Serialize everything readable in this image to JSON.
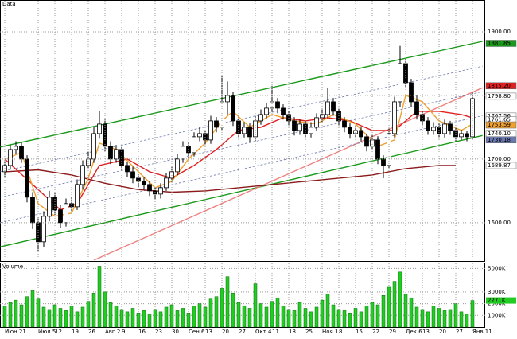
{
  "chart_data": {
    "type": "candlestick",
    "title": "Data",
    "volume_title": "Volume",
    "categories": [
      "Июн 21",
      null,
      null,
      null,
      null,
      null,
      "Июл 5",
      null,
      null,
      "12",
      null,
      null,
      "19",
      null,
      null,
      "26",
      null,
      null,
      "Авг 2",
      null,
      null,
      "9",
      null,
      null,
      "16",
      null,
      null,
      "23",
      null,
      null,
      "30",
      null,
      null,
      "Сен 6",
      null,
      null,
      "13",
      null,
      null,
      "20",
      null,
      null,
      "27",
      null,
      null,
      "Окт 4",
      null,
      null,
      "11",
      null,
      null,
      "18",
      null,
      null,
      "25",
      null,
      null,
      "Ноя 1",
      null,
      null,
      "8",
      null,
      null,
      "15",
      null,
      null,
      "22",
      null,
      null,
      "29",
      null,
      null,
      "Дек 6",
      null,
      null,
      "13",
      null,
      null,
      "20",
      null,
      null,
      "27",
      null,
      null,
      "Янв 11"
    ],
    "ohlc": [
      [
        1680,
        1698,
        1672,
        1690
      ],
      [
        1690,
        1722,
        1684,
        1715
      ],
      [
        1715,
        1728,
        1708,
        1720
      ],
      [
        1720,
        1726,
        1694,
        1700
      ],
      [
        1700,
        1706,
        1632,
        1640
      ],
      [
        1640,
        1648,
        1590,
        1600
      ],
      [
        1600,
        1608,
        1555,
        1570
      ],
      [
        1570,
        1618,
        1562,
        1610
      ],
      [
        1610,
        1650,
        1602,
        1640
      ],
      [
        1640,
        1646,
        1612,
        1620
      ],
      [
        1620,
        1628,
        1592,
        1600
      ],
      [
        1600,
        1638,
        1594,
        1630
      ],
      [
        1630,
        1640,
        1617,
        1625
      ],
      [
        1625,
        1668,
        1620,
        1660
      ],
      [
        1660,
        1698,
        1652,
        1690
      ],
      [
        1690,
        1712,
        1684,
        1700
      ],
      [
        1700,
        1750,
        1694,
        1740
      ],
      [
        1740,
        1775,
        1732,
        1755
      ],
      [
        1755,
        1762,
        1712,
        1720
      ],
      [
        1720,
        1728,
        1692,
        1700
      ],
      [
        1700,
        1722,
        1694,
        1715
      ],
      [
        1715,
        1720,
        1682,
        1690
      ],
      [
        1690,
        1696,
        1672,
        1680
      ],
      [
        1680,
        1688,
        1662,
        1670
      ],
      [
        1670,
        1676,
        1656,
        1665
      ],
      [
        1665,
        1672,
        1652,
        1660
      ],
      [
        1660,
        1666,
        1642,
        1650
      ],
      [
        1650,
        1656,
        1636,
        1645
      ],
      [
        1645,
        1662,
        1638,
        1655
      ],
      [
        1655,
        1678,
        1650,
        1670
      ],
      [
        1670,
        1688,
        1664,
        1680
      ],
      [
        1680,
        1708,
        1674,
        1700
      ],
      [
        1700,
        1728,
        1694,
        1720
      ],
      [
        1720,
        1726,
        1702,
        1710
      ],
      [
        1710,
        1742,
        1704,
        1735
      ],
      [
        1735,
        1750,
        1728,
        1740
      ],
      [
        1740,
        1746,
        1722,
        1730
      ],
      [
        1730,
        1768,
        1724,
        1760
      ],
      [
        1760,
        1766,
        1742,
        1750
      ],
      [
        1750,
        1830,
        1744,
        1790
      ],
      [
        1790,
        1822,
        1770,
        1800
      ],
      [
        1800,
        1806,
        1752,
        1760
      ],
      [
        1760,
        1766,
        1732,
        1740
      ],
      [
        1740,
        1758,
        1734,
        1750
      ],
      [
        1750,
        1756,
        1726,
        1735
      ],
      [
        1735,
        1768,
        1728,
        1760
      ],
      [
        1760,
        1778,
        1754,
        1770
      ],
      [
        1770,
        1788,
        1764,
        1780
      ],
      [
        1780,
        1815,
        1774,
        1790
      ],
      [
        1790,
        1796,
        1772,
        1780
      ],
      [
        1780,
        1786,
        1762,
        1770
      ],
      [
        1770,
        1776,
        1752,
        1760
      ],
      [
        1760,
        1766,
        1737,
        1745
      ],
      [
        1745,
        1762,
        1738,
        1755
      ],
      [
        1755,
        1760,
        1732,
        1740
      ],
      [
        1740,
        1758,
        1734,
        1750
      ],
      [
        1750,
        1772,
        1744,
        1765
      ],
      [
        1765,
        1778,
        1758,
        1770
      ],
      [
        1770,
        1812,
        1764,
        1790
      ],
      [
        1790,
        1796,
        1768,
        1775
      ],
      [
        1775,
        1780,
        1752,
        1760
      ],
      [
        1760,
        1766,
        1742,
        1750
      ],
      [
        1750,
        1756,
        1732,
        1740
      ],
      [
        1740,
        1752,
        1734,
        1745
      ],
      [
        1745,
        1750,
        1728,
        1735
      ],
      [
        1735,
        1740,
        1712,
        1720
      ],
      [
        1720,
        1738,
        1714,
        1730
      ],
      [
        1730,
        1736,
        1692,
        1700
      ],
      [
        1700,
        1706,
        1670,
        1690
      ],
      [
        1690,
        1748,
        1684,
        1740
      ],
      [
        1740,
        1798,
        1734,
        1790
      ],
      [
        1790,
        1878,
        1782,
        1850
      ],
      [
        1850,
        1858,
        1812,
        1820
      ],
      [
        1820,
        1826,
        1782,
        1790
      ],
      [
        1790,
        1800,
        1762,
        1770
      ],
      [
        1770,
        1776,
        1752,
        1760
      ],
      [
        1760,
        1766,
        1738,
        1745
      ],
      [
        1745,
        1758,
        1738,
        1750
      ],
      [
        1750,
        1756,
        1732,
        1740
      ],
      [
        1740,
        1762,
        1734,
        1755
      ],
      [
        1755,
        1760,
        1738,
        1745
      ],
      [
        1745,
        1750,
        1728,
        1735
      ],
      [
        1735,
        1746,
        1730,
        1740
      ],
      [
        1740,
        1744,
        1728,
        1735
      ],
      [
        1735,
        1805,
        1730,
        1795
      ]
    ],
    "volume": [
      1800,
      2100,
      2300,
      1900,
      2600,
      3100,
      2400,
      1700,
      1500,
      1900,
      1600,
      1400,
      1800,
      1300,
      1700,
      2200,
      2900,
      5200,
      3000,
      2100,
      1800,
      1500,
      1300,
      1600,
      1200,
      1400,
      1100,
      1500,
      1300,
      1700,
      1900,
      1400,
      1600,
      1200,
      1800,
      2000,
      1700,
      2400,
      2600,
      3300,
      4300,
      2900,
      2100,
      1800,
      1600,
      3700,
      2000,
      1700,
      2200,
      2500,
      1800,
      1500,
      1400,
      2100,
      1600,
      1300,
      1700,
      2300,
      2800,
      1900,
      1500,
      1400,
      1200,
      1600,
      1300,
      1800,
      2100,
      1900,
      2700,
      3400,
      3900,
      4700,
      2800,
      2500,
      1700,
      1500,
      1300,
      1800,
      1600,
      1400,
      1500,
      2000,
      1300,
      1100,
      2271
    ],
    "volume_last_label": "2271K",
    "volume_color": "#22cc22",
    "ylim": [
      1541,
      1940
    ],
    "yticks": [
      {
        "value": 1600,
        "label": "1600.00"
      },
      {
        "value": 1700,
        "label": "1700.00"
      },
      {
        "value": 1800,
        "label": "1800.00"
      },
      {
        "value": 1900,
        "label": "1900.00"
      }
    ],
    "vol_ylim": [
      0,
      5300
    ],
    "vol_yticks": [
      {
        "value": 1000,
        "label": "1000K"
      },
      {
        "value": 2000,
        "label": "2000K"
      },
      {
        "value": 3000,
        "label": "3000K"
      },
      {
        "value": 5000,
        "label": "5000K"
      }
    ],
    "grid": true,
    "lines": [
      {
        "color": "#1a9a1a",
        "x": [
          -0.8,
          85.8
        ],
        "values": [
          1719,
          1885
        ]
      },
      {
        "color": "#1a9a1a",
        "x": [
          -0.8,
          85.8
        ],
        "values": [
          1562,
          1737
        ]
      },
      {
        "color": "#f08080",
        "x": [
          16,
          85.8
        ],
        "values": [
          1541,
          1812
        ]
      },
      {
        "color": "#6a78b0",
        "dash": true,
        "x": [
          -0.8,
          85.8
        ],
        "values": [
          1640,
          1806
        ]
      },
      {
        "color": "#6a78b0",
        "dash": true,
        "x": [
          -0.8,
          85.8
        ],
        "values": [
          1680,
          1846
        ]
      },
      {
        "color": "#6a78b0",
        "dash": true,
        "x": [
          -0.8,
          85.8
        ],
        "values": [
          1600,
          1768
        ]
      },
      {
        "color": "#8b1a1a",
        "x": [
          0,
          6,
          12,
          18,
          24,
          30,
          36,
          42,
          48,
          54,
          60,
          66,
          72,
          78,
          81
        ],
        "values": [
          1680,
          1683,
          1675,
          1662,
          1652,
          1648,
          1650,
          1655,
          1660,
          1665,
          1670,
          1675,
          1685,
          1690,
          1690
        ]
      },
      {
        "color": "#e02020",
        "x": [
          0,
          5,
          10,
          13,
          17,
          22,
          26,
          30,
          34,
          38,
          42,
          46,
          50,
          54,
          58,
          62,
          66,
          70,
          74,
          78,
          82,
          84
        ],
        "values": [
          1700,
          1660,
          1620,
          1630,
          1690,
          1700,
          1680,
          1670,
          1690,
          1715,
          1745,
          1750,
          1765,
          1760,
          1765,
          1760,
          1745,
          1745,
          1775,
          1775,
          1770,
          1765
        ]
      },
      {
        "color": "#f0a030",
        "x": [
          0,
          3,
          6,
          9,
          12,
          15,
          17,
          20,
          24,
          27,
          30,
          33,
          36,
          39,
          41,
          44,
          48,
          52,
          56,
          59,
          63,
          67,
          70,
          72,
          75,
          78,
          82,
          84
        ],
        "values": [
          1700,
          1710,
          1630,
          1610,
          1615,
          1670,
          1725,
          1715,
          1680,
          1655,
          1665,
          1700,
          1725,
          1760,
          1775,
          1750,
          1770,
          1760,
          1755,
          1770,
          1755,
          1720,
          1730,
          1800,
          1790,
          1760,
          1745,
          1755
        ]
      }
    ],
    "price_labels": [
      {
        "value": 1881.85,
        "label": "1881.85",
        "color": "#1a9a1a"
      },
      {
        "value": 1815.2,
        "label": "1815.20",
        "color": "#e02020"
      },
      {
        "value": 1798.8,
        "label": "1798.80",
        "color": "#ffffff"
      },
      {
        "value": 1767.56,
        "label": "1767.56",
        "color": "#ffffff"
      },
      {
        "value": 1761.65,
        "label": "1761.65",
        "color": "#ffffff"
      },
      {
        "value": 1753.59,
        "label": "1753.59",
        "color": "#f0a030"
      },
      {
        "value": 1740.1,
        "label": "1740.10",
        "color": "#ffffff"
      },
      {
        "value": 1730.18,
        "label": "1730.18",
        "color": "#6a78b0"
      },
      {
        "value": 1689.87,
        "label": "1689.87",
        "color": "#ffffff"
      }
    ]
  }
}
